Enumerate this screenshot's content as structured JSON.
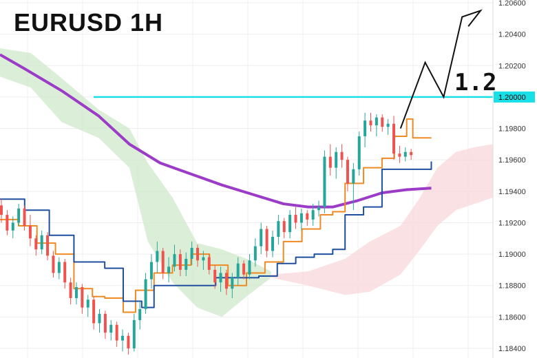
{
  "chart_data": {
    "type": "candlestick",
    "title": "EURUSD 1H",
    "annotation": "1.2",
    "y_ticks": [
      "1.20600",
      "1.20400",
      "1.20200",
      "1.20000",
      "1.19800",
      "1.19600",
      "1.19400",
      "1.19200",
      "1.19000",
      "1.18800",
      "1.18600",
      "1.18400"
    ],
    "ylim": [
      1.1838,
      1.2062
    ],
    "xlim": [
      0,
      160
    ],
    "grid": true,
    "horizontal_line": {
      "value": 1.2,
      "label": "1.20000",
      "color": "#19e0e6"
    },
    "series": [
      {
        "kind": "moving-average",
        "color": "#9b3bc7",
        "points": [
          [
            0,
            1.2027
          ],
          [
            8,
            1.2018
          ],
          [
            20,
            1.2004
          ],
          [
            32,
            1.1988
          ],
          [
            42,
            1.197
          ],
          [
            52,
            1.1958
          ],
          [
            62,
            1.1951
          ],
          [
            72,
            1.1944
          ],
          [
            82,
            1.1938
          ],
          [
            92,
            1.1932
          ],
          [
            100,
            1.193
          ],
          [
            108,
            1.193
          ],
          [
            116,
            1.1934
          ],
          [
            124,
            1.1939
          ],
          [
            132,
            1.1941
          ],
          [
            140,
            1.1942
          ]
        ]
      },
      {
        "kind": "conversion-line",
        "color": "#ef8a22",
        "points": [
          [
            0,
            1.1922
          ],
          [
            6,
            1.1918
          ],
          [
            12,
            1.1907
          ],
          [
            18,
            1.19
          ],
          [
            24,
            1.1878
          ],
          [
            30,
            1.1873
          ],
          [
            34,
            1.1872
          ],
          [
            40,
            1.1863
          ],
          [
            44,
            1.1877
          ],
          [
            50,
            1.1888
          ],
          [
            56,
            1.1893
          ],
          [
            62,
            1.19
          ],
          [
            68,
            1.1893
          ],
          [
            74,
            1.188
          ],
          [
            80,
            1.1888
          ],
          [
            86,
            1.1895
          ],
          [
            92,
            1.1908
          ],
          [
            98,
            1.1916
          ],
          [
            104,
            1.1925
          ],
          [
            108,
            1.1927
          ],
          [
            112,
            1.1945
          ],
          [
            118,
            1.1955
          ],
          [
            124,
            1.1961
          ],
          [
            128,
            1.1975
          ],
          [
            132,
            1.1986
          ],
          [
            134,
            1.1974
          ],
          [
            140,
            1.1974
          ]
        ]
      },
      {
        "kind": "base-line",
        "color": "#1f4e9e",
        "points": [
          [
            0,
            1.1935
          ],
          [
            8,
            1.1928
          ],
          [
            16,
            1.1912
          ],
          [
            24,
            1.1895
          ],
          [
            34,
            1.1891
          ],
          [
            40,
            1.187
          ],
          [
            46,
            1.1866
          ],
          [
            50,
            1.188
          ],
          [
            58,
            1.188
          ],
          [
            64,
            1.188
          ],
          [
            70,
            1.1885
          ],
          [
            78,
            1.1885
          ],
          [
            84,
            1.1886
          ],
          [
            90,
            1.1894
          ],
          [
            96,
            1.1898
          ],
          [
            102,
            1.19
          ],
          [
            108,
            1.1903
          ],
          [
            112,
            1.1925
          ],
          [
            118,
            1.193
          ],
          [
            124,
            1.1954
          ],
          [
            132,
            1.1954
          ],
          [
            134,
            1.1954
          ],
          [
            140,
            1.1959
          ]
        ]
      },
      {
        "kind": "cloud-green",
        "color": "#cfe8c9",
        "upper": [
          [
            0,
            1.2031
          ],
          [
            10,
            1.2028
          ],
          [
            20,
            1.2012
          ],
          [
            32,
            1.1992
          ],
          [
            42,
            1.198
          ],
          [
            48,
            1.1958
          ],
          [
            56,
            1.1936
          ],
          [
            64,
            1.1907
          ],
          [
            72,
            1.1903
          ],
          [
            80,
            1.1897
          ],
          [
            88,
            1.1889
          ]
        ],
        "lower": [
          [
            0,
            1.2013
          ],
          [
            10,
            1.2006
          ],
          [
            20,
            1.1984
          ],
          [
            32,
            1.1974
          ],
          [
            42,
            1.1955
          ],
          [
            48,
            1.1908
          ],
          [
            56,
            1.1882
          ],
          [
            64,
            1.1866
          ],
          [
            72,
            1.186
          ],
          [
            80,
            1.1873
          ],
          [
            88,
            1.1885
          ]
        ]
      },
      {
        "kind": "cloud-red",
        "color": "#f8d7d9",
        "upper": [
          [
            88,
            1.1887
          ],
          [
            100,
            1.1889
          ],
          [
            112,
            1.1897
          ],
          [
            120,
            1.1908
          ],
          [
            130,
            1.1918
          ],
          [
            136,
            1.1935
          ],
          [
            142,
            1.1955
          ],
          [
            148,
            1.1965
          ],
          [
            154,
            1.1968
          ],
          [
            160,
            1.197
          ]
        ],
        "lower": [
          [
            88,
            1.1885
          ],
          [
            100,
            1.188
          ],
          [
            112,
            1.1874
          ],
          [
            120,
            1.1876
          ],
          [
            130,
            1.1887
          ],
          [
            136,
            1.1902
          ],
          [
            142,
            1.1918
          ],
          [
            148,
            1.1928
          ],
          [
            154,
            1.1932
          ],
          [
            160,
            1.1936
          ]
        ]
      },
      {
        "kind": "forecast-line",
        "color": "#111111",
        "points": [
          [
            130,
            1.198
          ],
          [
            138,
            1.2022
          ],
          [
            144,
            1.2
          ],
          [
            150,
            1.2051
          ],
          [
            156,
            1.2055
          ],
          [
            152,
            1.2045
          ]
        ]
      }
    ],
    "candles": [
      [
        1.1931,
        1.1935,
        1.192,
        1.1925
      ],
      [
        1.1925,
        1.1928,
        1.1912,
        1.1915
      ],
      [
        1.1915,
        1.1924,
        1.191,
        1.192
      ],
      [
        1.192,
        1.1932,
        1.1918,
        1.1929
      ],
      [
        1.1929,
        1.1931,
        1.1915,
        1.1918
      ],
      [
        1.1918,
        1.1925,
        1.1905,
        1.191
      ],
      [
        1.191,
        1.1912,
        1.1899,
        1.1903
      ],
      [
        1.1903,
        1.1915,
        1.19,
        1.1912
      ],
      [
        1.1912,
        1.1914,
        1.1896,
        1.1899
      ],
      [
        1.1899,
        1.1902,
        1.1885,
        1.1888
      ],
      [
        1.1888,
        1.1898,
        1.1884,
        1.1895
      ],
      [
        1.1895,
        1.1897,
        1.1878,
        1.1882
      ],
      [
        1.1882,
        1.1885,
        1.1868,
        1.1872
      ],
      [
        1.1872,
        1.1882,
        1.1868,
        1.1879
      ],
      [
        1.1879,
        1.1881,
        1.1862,
        1.1866
      ],
      [
        1.1866,
        1.1874,
        1.186,
        1.1871
      ],
      [
        1.1871,
        1.1873,
        1.1852,
        1.1856
      ],
      [
        1.1856,
        1.1865,
        1.185,
        1.1862
      ],
      [
        1.1862,
        1.1864,
        1.1846,
        1.185
      ],
      [
        1.185,
        1.1858,
        1.1845,
        1.1855
      ],
      [
        1.1855,
        1.1857,
        1.1841,
        1.1845
      ],
      [
        1.1845,
        1.1852,
        1.1838,
        1.1848
      ],
      [
        1.1848,
        1.185,
        1.1836,
        1.184
      ],
      [
        1.184,
        1.1862,
        1.1838,
        1.1858
      ],
      [
        1.1858,
        1.187,
        1.1852,
        1.1865
      ],
      [
        1.1865,
        1.1888,
        1.1862,
        1.1884
      ],
      [
        1.1884,
        1.19,
        1.1878,
        1.1895
      ],
      [
        1.1895,
        1.1908,
        1.1888,
        1.1902
      ],
      [
        1.1902,
        1.1904,
        1.1884,
        1.1888
      ],
      [
        1.1888,
        1.1898,
        1.1882,
        1.1892
      ],
      [
        1.1892,
        1.1906,
        1.1889,
        1.19
      ],
      [
        1.19,
        1.1903,
        1.1886,
        1.189
      ],
      [
        1.189,
        1.1901,
        1.1886,
        1.1897
      ],
      [
        1.1897,
        1.1908,
        1.1893,
        1.1904
      ],
      [
        1.1904,
        1.1906,
        1.1892,
        1.1896
      ],
      [
        1.1896,
        1.1902,
        1.189,
        1.1898
      ],
      [
        1.1898,
        1.19,
        1.1887,
        1.189
      ],
      [
        1.189,
        1.1893,
        1.1878,
        1.1882
      ],
      [
        1.1882,
        1.1892,
        1.1876,
        1.1888
      ],
      [
        1.1888,
        1.189,
        1.1874,
        1.1878
      ],
      [
        1.1878,
        1.1888,
        1.1872,
        1.1885
      ],
      [
        1.1885,
        1.1898,
        1.188,
        1.1894
      ],
      [
        1.1894,
        1.1896,
        1.1884,
        1.1887
      ],
      [
        1.1887,
        1.19,
        1.1884,
        1.1896
      ],
      [
        1.1896,
        1.191,
        1.1892,
        1.1905
      ],
      [
        1.1905,
        1.192,
        1.19,
        1.1916
      ],
      [
        1.1916,
        1.1918,
        1.1898,
        1.1902
      ],
      [
        1.1902,
        1.1915,
        1.1898,
        1.1911
      ],
      [
        1.1911,
        1.1925,
        1.1906,
        1.1921
      ],
      [
        1.1921,
        1.1923,
        1.191,
        1.1914
      ],
      [
        1.1914,
        1.1928,
        1.191,
        1.1925
      ],
      [
        1.1925,
        1.193,
        1.1916,
        1.192
      ],
      [
        1.192,
        1.1929,
        1.1915,
        1.1926
      ],
      [
        1.1926,
        1.1928,
        1.1918,
        1.1922
      ],
      [
        1.1922,
        1.1932,
        1.1918,
        1.1928
      ],
      [
        1.1928,
        1.1934,
        1.1924,
        1.193
      ],
      [
        1.193,
        1.1966,
        1.1926,
        1.1962
      ],
      [
        1.1962,
        1.197,
        1.195,
        1.1955
      ],
      [
        1.1955,
        1.1968,
        1.1948,
        1.1965
      ],
      [
        1.1965,
        1.197,
        1.1955,
        1.196
      ],
      [
        1.196,
        1.1962,
        1.194,
        1.1945
      ],
      [
        1.1945,
        1.1958,
        1.1928,
        1.1954
      ],
      [
        1.1954,
        1.1978,
        1.195,
        1.1975
      ],
      [
        1.1975,
        1.199,
        1.1968,
        1.1985
      ],
      [
        1.1985,
        1.199,
        1.1978,
        1.1982
      ],
      [
        1.1982,
        1.1989,
        1.1975,
        1.1987
      ],
      [
        1.1987,
        1.1989,
        1.1978,
        1.1981
      ],
      [
        1.1981,
        1.1986,
        1.1976,
        1.1983
      ],
      [
        1.1983,
        1.1988,
        1.196,
        1.1964
      ],
      [
        1.1964,
        1.1969,
        1.1958,
        1.1962
      ],
      [
        1.1962,
        1.1968,
        1.1959,
        1.1965
      ],
      [
        1.1965,
        1.1967,
        1.196,
        1.1963
      ]
    ]
  }
}
